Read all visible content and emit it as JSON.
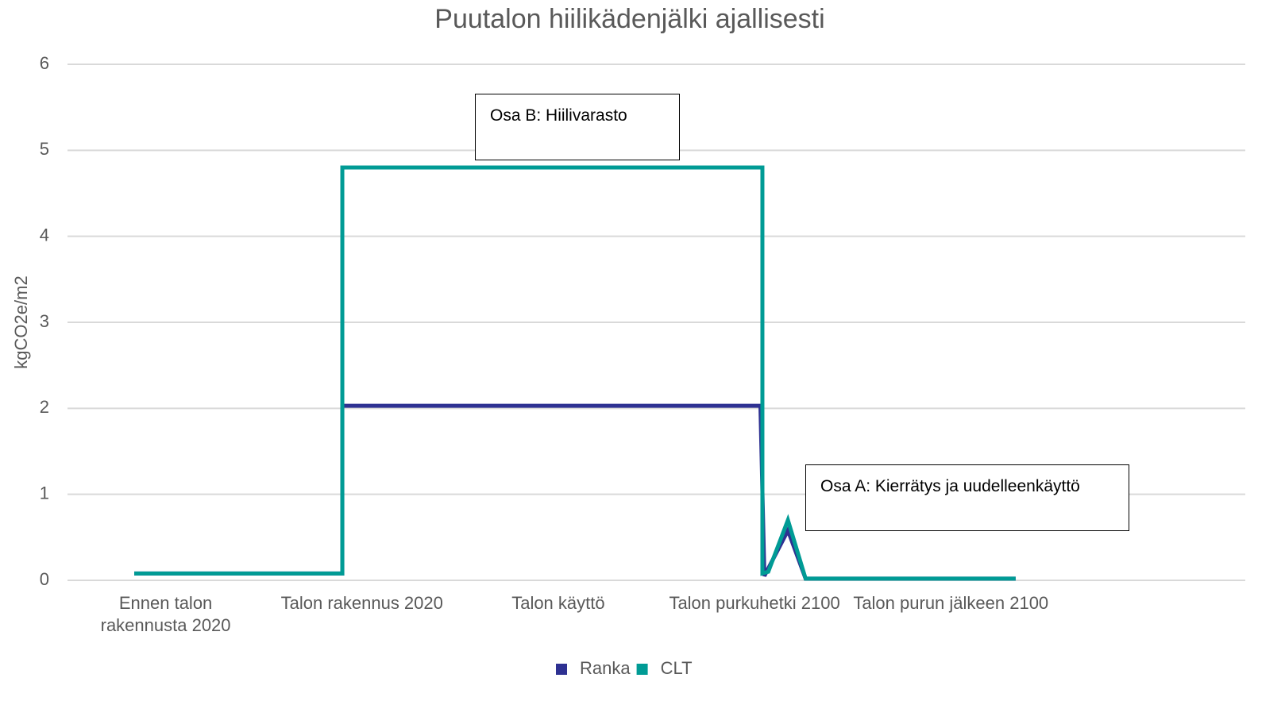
{
  "chart_data": {
    "type": "line",
    "title": "Puutalon hiilikädenjälki ajallisesti",
    "y_label": "kgCO2e/m2",
    "xlim": [
      -0.5,
      5.5
    ],
    "xticks": [
      {
        "value": 0,
        "label": "Ennen talon\nrakennusta 2020"
      },
      {
        "value": 1,
        "label": "Talon rakennus 2020"
      },
      {
        "value": 2,
        "label": "Talon käyttö"
      },
      {
        "value": 3,
        "label": "Talon purkuhetki 2100"
      },
      {
        "value": 4,
        "label": "Talon purun jälkeen 2100"
      }
    ],
    "ylim": [
      0,
      6
    ],
    "yticks": [
      0,
      1,
      2,
      3,
      4,
      5,
      6
    ],
    "grid": true,
    "legend": "bottom",
    "series": [
      {
        "name": "Ranka",
        "color": "#2e3192",
        "x": [
          -0.16,
          0.9,
          0.9,
          3.03,
          3.05,
          3.17,
          3.26,
          4.33
        ],
        "values": [
          0.08,
          0.08,
          2.03,
          2.03,
          0.05,
          0.58,
          0.02,
          0.02
        ]
      },
      {
        "name": "CLT",
        "color": "#009b95",
        "x": [
          -0.16,
          0.9,
          0.9,
          3.04,
          3.04,
          3.07,
          3.17,
          3.26,
          4.33
        ],
        "values": [
          0.08,
          0.08,
          4.8,
          4.8,
          0.08,
          0.1,
          0.7,
          0.02,
          0.02
        ]
      }
    ],
    "annotations": [
      "Osa B: Hiilivarasto",
      "Osa A: Kierrätys ja uudelleenkäyttö"
    ]
  }
}
